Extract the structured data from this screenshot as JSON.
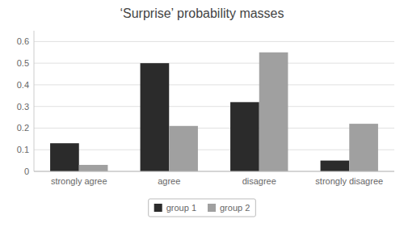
{
  "chart_data": {
    "type": "bar",
    "title": "‘Surprise’ probability masses",
    "categories": [
      "strongly agree",
      "agree",
      "disagree",
      "strongly disagree"
    ],
    "series": [
      {
        "name": "group 1",
        "color": "#2b2b2b",
        "values": [
          0.13,
          0.5,
          0.32,
          0.05
        ]
      },
      {
        "name": "group 2",
        "color": "#a0a0a0",
        "values": [
          0.03,
          0.21,
          0.55,
          0.22
        ]
      }
    ],
    "ylim": [
      0,
      0.65
    ],
    "yticks": [
      0,
      0.1,
      0.2,
      0.3,
      0.4,
      0.5,
      0.6
    ],
    "grid": true,
    "legend": "bottom"
  }
}
